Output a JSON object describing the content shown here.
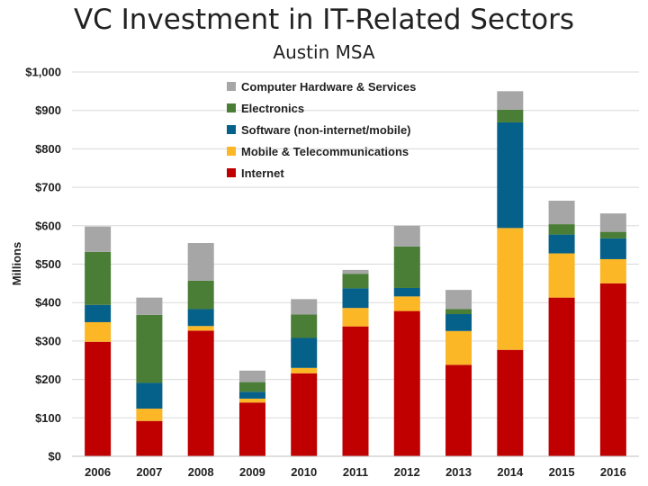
{
  "chart_data": {
    "type": "bar",
    "stacked": true,
    "title": "VC Investment in IT-Related Sectors",
    "subtitle": "Austin MSA",
    "xlabel": "",
    "ylabel": "Millions",
    "ylim": [
      0,
      1000
    ],
    "ytick_values": [
      0,
      100,
      200,
      300,
      400,
      500,
      600,
      700,
      800,
      900,
      1000
    ],
    "ytick_labels": [
      "$0",
      "$100",
      "$200",
      "$300",
      "$400",
      "$500",
      "$600",
      "$700",
      "$800",
      "$900",
      "$1,000"
    ],
    "grid": true,
    "legend_position": "top-center",
    "categories": [
      "2006",
      "2007",
      "2008",
      "2009",
      "2010",
      "2011",
      "2012",
      "2013",
      "2014",
      "2015",
      "2016"
    ],
    "series": [
      {
        "name": "Internet",
        "color": "#C00000",
        "values": [
          298,
          92,
          327,
          140,
          216,
          338,
          378,
          238,
          277,
          413,
          450
        ]
      },
      {
        "name": "Mobile & Telecommunications",
        "color": "#FBB726",
        "values": [
          51,
          32,
          12,
          10,
          14,
          48,
          38,
          88,
          317,
          115,
          63
        ]
      },
      {
        "name": "Software (non-internet/mobile)",
        "color": "#06618A",
        "values": [
          45,
          67,
          44,
          18,
          78,
          51,
          22,
          44,
          275,
          49,
          54
        ]
      },
      {
        "name": "Electronics",
        "color": "#4A7D35",
        "values": [
          138,
          177,
          74,
          25,
          61,
          38,
          108,
          13,
          33,
          27,
          17
        ]
      },
      {
        "name": "Computer Hardware & Services",
        "color": "#A6A6A6",
        "values": [
          66,
          45,
          98,
          30,
          40,
          10,
          54,
          50,
          48,
          61,
          48
        ]
      }
    ],
    "legend_order": [
      4,
      3,
      2,
      1,
      0
    ]
  }
}
